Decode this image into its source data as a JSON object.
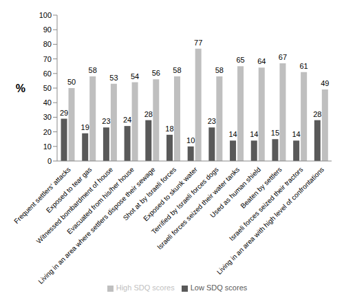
{
  "chart_data": {
    "type": "bar",
    "y_label": "%",
    "categories": [
      "Frequent settlers' attacks",
      "Exposed to tear gas",
      "Witnessed bombardment of  house",
      "Evacuated from his/her house",
      "Living in an area where settlers dispose their sewage",
      "Shot at by Israeli forces",
      "Exposed to skunk water",
      "Terrified by Israeli forces dogs",
      "Israeli forces seized their water tanks",
      "Used as human shield",
      "Beaten by settlers",
      "Israeli forces seized their tractors",
      "Living in an area with high level of confrontations"
    ],
    "series": [
      {
        "name": "Low SDQ scores",
        "color": "#595959",
        "values": [
          29,
          19,
          23,
          24,
          28,
          18,
          10,
          23,
          14,
          14,
          15,
          14,
          28
        ]
      },
      {
        "name": "High SDQ scores",
        "color": "#bfbfbf",
        "values": [
          50,
          58,
          53,
          54,
          56,
          58,
          77,
          58,
          65,
          64,
          67,
          61,
          49
        ]
      }
    ],
    "ylim": [
      0,
      100
    ],
    "yticks": [
      0,
      10,
      20,
      30,
      40,
      50,
      60,
      70,
      80,
      90,
      100
    ],
    "grid": false,
    "legend": "bottom",
    "data_labels": true
  }
}
